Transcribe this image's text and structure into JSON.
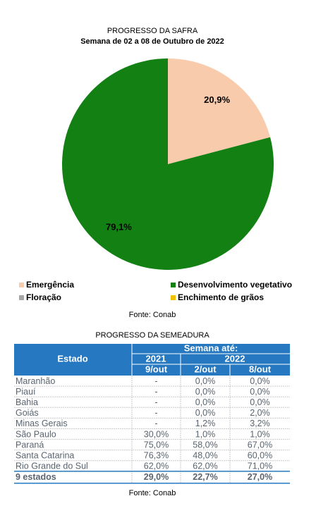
{
  "chart_data": {
    "type": "pie",
    "title": "PROGRESSO DA SAFRA",
    "subtitle": "Semana de 02 a 08 de Outubro de 2022",
    "categories": [
      "Emergência",
      "Desenvolvimento vegetativo",
      "Floração",
      "Enchimento de grãos"
    ],
    "values": [
      20.9,
      79.1,
      0,
      0
    ],
    "value_labels": [
      "20,9%",
      "79,1%",
      null,
      null
    ],
    "colors": [
      "#f8cbad",
      "#128012",
      "#a6a6a6",
      "#f2c200"
    ],
    "source": "Fonte: Conab"
  },
  "table": {
    "title": "PROGRESSO DA SEMEADURA",
    "header": {
      "state": "Estado",
      "week": "Semana até:",
      "years": [
        "2021",
        "2022"
      ],
      "dates": [
        "9/out",
        "2/out",
        "8/out"
      ]
    },
    "rows": [
      [
        "Maranhão",
        "-",
        "0,0%",
        "0,0%"
      ],
      [
        "Piauí",
        "-",
        "0,0%",
        "0,0%"
      ],
      [
        "Bahia",
        "-",
        "0,0%",
        "0,0%"
      ],
      [
        "Goiás",
        "-",
        "0,0%",
        "2,0%"
      ],
      [
        "Minas Gerais",
        "-",
        "1,2%",
        "3,2%"
      ],
      [
        "São Paulo",
        "30,0%",
        "1,0%",
        "1,0%"
      ],
      [
        "Paraná",
        "75,0%",
        "58,0%",
        "67,0%"
      ],
      [
        "Santa Catarina",
        "76,3%",
        "48,0%",
        "60,0%"
      ],
      [
        "Rio Grande do Sul",
        "62,0%",
        "62,0%",
        "71,0%"
      ]
    ],
    "total": [
      "9 estados",
      "29,0%",
      "22,7%",
      "27,0%"
    ],
    "source": "Fonte: Conab"
  }
}
